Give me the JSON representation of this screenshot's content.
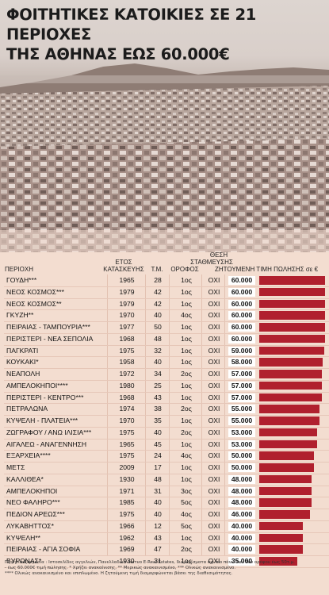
{
  "title_line1": "ΦΟΙΤΗΤΙΚΕΣ ΚΑΤΟΙΚΙΕΣ ΣΕ 21 ΠΕΡΙΟΧΕΣ",
  "title_line2": "ΤΗΣ ΑΘΗΝΑΣ ΕΩΣ 60.000€",
  "colors": {
    "bar": "#b0202e",
    "background": "#f3ddd0"
  },
  "headers": {
    "area": "ΠΕΡΙΟΧΗ",
    "year_1": "ΕΤΟΣ",
    "year_2": "ΚΑΤΑΣΚΕΥΗΣ",
    "sqm": "Τ.Μ.",
    "floor": "ΟΡΟΦΟΣ",
    "park_1": "ΘΕΣΗ",
    "park_2": "ΣΤΑΘΜΕΥΣΗΣ",
    "price": "ΖΗΤΟΥΜΕΝΗ ΤΙΜΗ ΠΩΛΗΣΗΣ σε €"
  },
  "chart_data": {
    "type": "table",
    "title": "ΦΟΙΤΗΤΙΚΕΣ ΚΑΤΟΙΚΙΕΣ ΣΕ 21 ΠΕΡΙΟΧΕΣ ΤΗΣ ΑΘΗΝΑΣ ΕΩΣ 60.000€",
    "value_max": 60000,
    "rows": [
      {
        "area": "ΓΟΥΔΗ***",
        "year": "1965",
        "sqm": "28",
        "floor": "1ος",
        "parking": "ΟΧΙ",
        "price_label": "60.000",
        "price": 60000
      },
      {
        "area": "ΝΕΟΣ ΚΟΣΜΟΣ***",
        "year": "1979",
        "sqm": "42",
        "floor": "1ος",
        "parking": "ΟΧΙ",
        "price_label": "60.000",
        "price": 60000
      },
      {
        "area": "ΝΕΟΣ ΚΟΣΜΟΣ**",
        "year": "1979",
        "sqm": "42",
        "floor": "1ος",
        "parking": "ΟΧΙ",
        "price_label": "60.000",
        "price": 60000
      },
      {
        "area": "ΓΚΥΖΗ**",
        "year": "1970",
        "sqm": "40",
        "floor": "4ος",
        "parking": "ΟΧΙ",
        "price_label": "60.000",
        "price": 60000
      },
      {
        "area": "ΠΕΙΡΑΙΑΣ - ΤΑΜΠΟΥΡΙΑ***",
        "year": "1977",
        "sqm": "50",
        "floor": "1ος",
        "parking": "ΟΧΙ",
        "price_label": "60.000",
        "price": 60000
      },
      {
        "area": "ΠΕΡΙΣΤΕΡΙ - ΝΕΑ ΣΕΠΟΛΙΑ",
        "year": "1968",
        "sqm": "48",
        "floor": "1ος",
        "parking": "ΟΧΙ",
        "price_label": "60.000",
        "price": 60000
      },
      {
        "area": "ΠΑΓΚΡΑΤΙ",
        "year": "1975",
        "sqm": "32",
        "floor": "1ος",
        "parking": "ΟΧΙ",
        "price_label": "59.000",
        "price": 59000
      },
      {
        "area": "ΚΟΥΚΑΚΙ*",
        "year": "1958",
        "sqm": "40",
        "floor": "1ος",
        "parking": "ΟΧΙ",
        "price_label": "58.000",
        "price": 58000
      },
      {
        "area": "ΝΕΑΠΟΛΗ",
        "year": "1972",
        "sqm": "34",
        "floor": "2ος",
        "parking": "ΟΧΙ",
        "price_label": "57.000",
        "price": 57000
      },
      {
        "area": "ΑΜΠΕΛΟΚΗΠΟΙ****",
        "year": "1980",
        "sqm": "25",
        "floor": "1ος",
        "parking": "ΟΧΙ",
        "price_label": "57.000",
        "price": 57000
      },
      {
        "area": "ΠΕΡΙΣΤΕΡΙ - ΚΕΝΤΡΟ***",
        "year": "1968",
        "sqm": "43",
        "floor": "1ος",
        "parking": "ΟΧΙ",
        "price_label": "57.000",
        "price": 57000
      },
      {
        "area": "ΠΕΤΡΑΛΩΝΑ",
        "year": "1974",
        "sqm": "38",
        "floor": "2ος",
        "parking": "ΟΧΙ",
        "price_label": "55.000",
        "price": 55000
      },
      {
        "area": "ΚΥΨΕΛΗ - ΠΛΑΤΕΙΑ***",
        "year": "1970",
        "sqm": "35",
        "floor": "1ος",
        "parking": "ΟΧΙ",
        "price_label": "55.000",
        "price": 55000
      },
      {
        "area": "ΖΩΓΡΑΦΟΥ / ΑΝΩ ΙΛΙΣΙΑ***",
        "year": "1975",
        "sqm": "40",
        "floor": "2ος",
        "parking": "ΟΧΙ",
        "price_label": "53.000",
        "price": 53000
      },
      {
        "area": "ΑΙΓΑΛΕΩ - ΑΝΑΓΕΝΝΗΣΗ",
        "year": "1965",
        "sqm": "45",
        "floor": "1ος",
        "parking": "ΟΧΙ",
        "price_label": "53.000",
        "price": 53000
      },
      {
        "area": "ΕΞΑΡΧΕΙΑ****",
        "year": "1975",
        "sqm": "24",
        "floor": "4ος",
        "parking": "ΟΧΙ",
        "price_label": "50.000",
        "price": 50000
      },
      {
        "area": "ΜΕΤΣ",
        "year": "2009",
        "sqm": "17",
        "floor": "1ος",
        "parking": "ΟΧΙ",
        "price_label": "50.000",
        "price": 50000
      },
      {
        "area": "ΚΑΛΛΙΘΕΑ*",
        "year": "1930",
        "sqm": "48",
        "floor": "1ος",
        "parking": "ΟΧΙ",
        "price_label": "48.000",
        "price": 48000
      },
      {
        "area": "ΑΜΠΕΛΟΚΗΠΟΙ",
        "year": "1971",
        "sqm": "31",
        "floor": "3ος",
        "parking": "ΟΧΙ",
        "price_label": "48.000",
        "price": 48000
      },
      {
        "area": "ΝΕΟ ΦΑΛΗΡΟ***",
        "year": "1985",
        "sqm": "40",
        "floor": "5ος",
        "parking": "ΟΧΙ",
        "price_label": "48.000",
        "price": 48000
      },
      {
        "area": "ΠΕΔΙΟΝ ΑΡΕΩΣ***",
        "year": "1975",
        "sqm": "40",
        "floor": "4ος",
        "parking": "ΟΧΙ",
        "price_label": "46.000",
        "price": 46000
      },
      {
        "area": "ΛΥΚΑΒΗΤΤΟΣ*",
        "year": "1966",
        "sqm": "12",
        "floor": "5ος",
        "parking": "ΟΧΙ",
        "price_label": "40.000",
        "price": 40000
      },
      {
        "area": "ΚΥΨΕΛΗ**",
        "year": "1962",
        "sqm": "43",
        "floor": "1ος",
        "parking": "ΟΧΙ",
        "price_label": "40.000",
        "price": 40000
      },
      {
        "area": "ΠΕΙΡΑΙΑΣ - ΑΓΙΑ ΣΟΦΙΑ",
        "year": "1969",
        "sqm": "47",
        "floor": "2ος",
        "parking": "ΟΧΙ",
        "price_label": "40.000",
        "price": 40000
      },
      {
        "area": "ΒΥΡΩΝΑΣ*",
        "year": "1930",
        "sqm": "31",
        "floor": "1ος",
        "parking": "ΟΧΙ",
        "price_label": "35.000",
        "price": 35000
      }
    ]
  },
  "footnote_1": "Πηγή/επεξεργασία : Ιστοσελίδες αγγελιών, Πανελλαδικό Δίκτυο E-Real Estates, διαμερίσματα όχι πιο πάνω του 1ου ορόφου έως 50τ.μ.",
  "footnote_2": "- έως 60.000€ τιμή πώλησης. * Χρήζει ανακαίνισης, ** Μερικώς ανακαινισμένο, *** Ολικώς ανακαινισμένο.",
  "footnote_3": "**** Ολικώς ανακαινισμένο και επιπλωμένο. Η ζητούμενη τιμή διαμορφώνεται βάσει της διαθεσιμότητας."
}
